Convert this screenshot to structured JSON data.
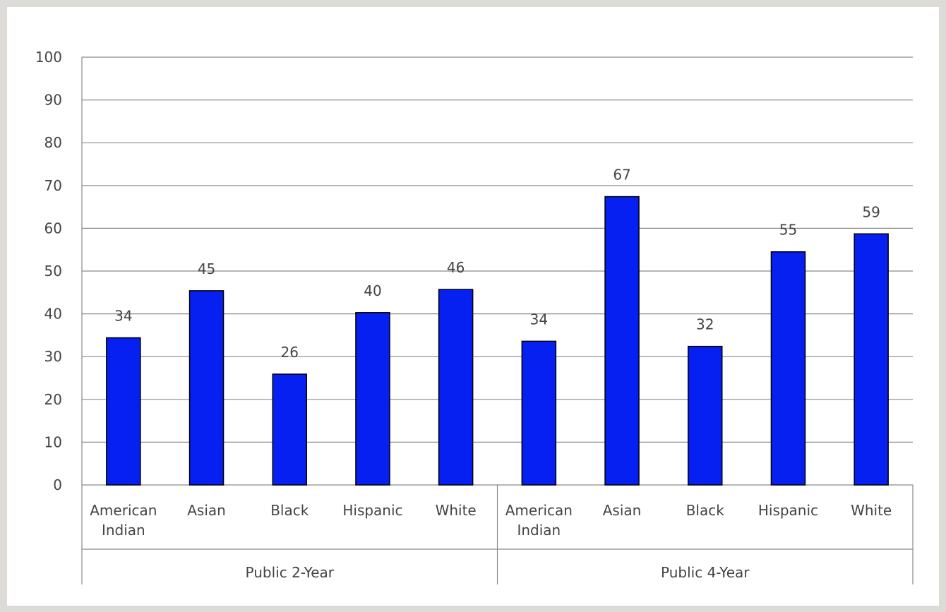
{
  "chart_data": {
    "type": "bar",
    "groups": [
      {
        "name": "Public 2-Year",
        "categories": [
          [
            "American",
            "Indian"
          ],
          [
            "Asian"
          ],
          [
            "Black"
          ],
          [
            "Hispanic"
          ],
          [
            "White"
          ]
        ],
        "values": [
          34.4,
          45.4,
          25.9,
          40.3,
          45.7
        ],
        "labels": [
          "34",
          "45",
          "26",
          "40",
          "46"
        ]
      },
      {
        "name": "Public 4-Year",
        "categories": [
          [
            "American",
            "Indian"
          ],
          [
            "Asian"
          ],
          [
            "Black"
          ],
          [
            "Hispanic"
          ],
          [
            "White"
          ]
        ],
        "values": [
          33.6,
          67.4,
          32.4,
          54.5,
          58.7
        ],
        "labels": [
          "34",
          "67",
          "32",
          "55",
          "59"
        ]
      }
    ],
    "y_ticks": [
      "0",
      "10",
      "20",
      "30",
      "40",
      "50",
      "60",
      "70",
      "80",
      "90",
      "100"
    ],
    "ylim": [
      0,
      100
    ],
    "grid": true,
    "bar_color": "#0520f0",
    "title": "",
    "xlabel": "",
    "ylabel": ""
  }
}
